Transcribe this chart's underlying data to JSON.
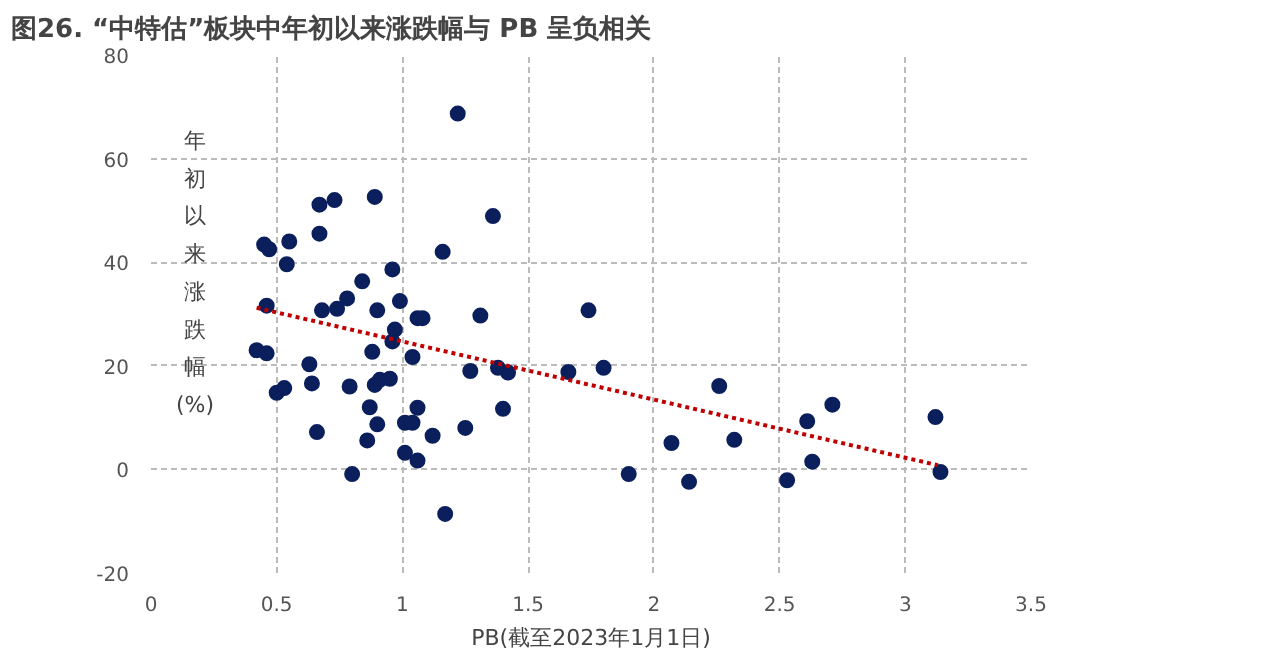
{
  "chart_data": {
    "type": "scatter",
    "title": "图26. “中特估”板块中年初以来涨跌幅与 PB 呈负相关",
    "xlabel": "PB(截至2023年1月1日)",
    "ylabel": "年初以来涨跌幅(%)",
    "xlim": [
      0,
      3.5
    ],
    "ylim": [
      -20,
      80
    ],
    "xticks": [
      0,
      0.5,
      1,
      1.5,
      2,
      2.5,
      3,
      3.5
    ],
    "yticks": [
      -20,
      0,
      20,
      40,
      60,
      80
    ],
    "grid": true,
    "marker": "circle",
    "series": [
      {
        "color": "#0a1f5c",
        "x": [
          0.42,
          0.46,
          0.45,
          0.47,
          0.46,
          0.55,
          0.54,
          0.5,
          0.53,
          0.67,
          0.67,
          0.73,
          0.68,
          0.74,
          0.78,
          0.63,
          0.64,
          0.66,
          0.79,
          0.8,
          0.84,
          0.89,
          0.9,
          0.88,
          0.89,
          0.91,
          0.95,
          0.87,
          0.86,
          0.9,
          0.96,
          0.96,
          0.97,
          0.99,
          1.04,
          1.06,
          1.08,
          1.01,
          1.04,
          1.06,
          1.01,
          1.06,
          1.12,
          1.17,
          1.16,
          1.22,
          1.25,
          1.27,
          1.31,
          1.36,
          1.38,
          1.42,
          1.4,
          1.66,
          1.74,
          1.8,
          1.9,
          2.07,
          2.14,
          2.26,
          2.32,
          2.53,
          2.61,
          2.63,
          2.71,
          3.12,
          3.14
        ],
        "values": [
          23.0,
          22.4,
          43.4,
          42.5,
          31.6,
          44.0,
          39.6,
          14.8,
          15.7,
          45.5,
          51.1,
          52.0,
          30.7,
          31.0,
          33.0,
          20.3,
          16.6,
          7.2,
          16.0,
          -0.9,
          36.3,
          52.6,
          30.7,
          22.7,
          16.3,
          17.3,
          17.5,
          12.0,
          5.6,
          8.7,
          38.6,
          24.7,
          27.0,
          32.5,
          21.7,
          29.2,
          29.2,
          9.0,
          9.0,
          11.9,
          3.2,
          1.7,
          6.5,
          -8.6,
          42.0,
          68.7,
          8.0,
          19.0,
          29.7,
          48.9,
          19.6,
          18.7,
          11.7,
          18.8,
          30.7,
          19.6,
          -0.9,
          5.1,
          -2.4,
          16.1,
          5.7,
          -2.1,
          9.3,
          1.5,
          12.5,
          10.1,
          -0.5
        ]
      },
      {
        "type": "line",
        "color": "#c00000",
        "line_style": "dotted",
        "marker": "none",
        "x": [
          0.42,
          3.13
        ],
        "values": [
          31.2,
          0.8
        ]
      }
    ]
  }
}
